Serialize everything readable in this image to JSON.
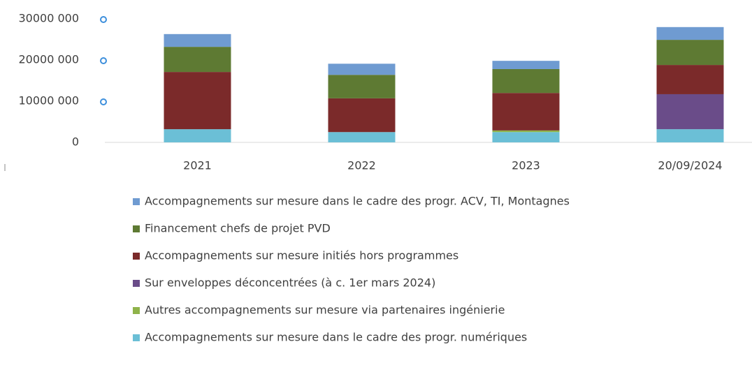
{
  "chart_data": {
    "type": "stacked_bar",
    "categories": [
      "2021",
      "2022",
      "2023",
      "20/09/2024"
    ],
    "series": [
      {
        "name": "Accompagnements sur mesure dans le cadre des progr. ACV, TI, Montagnes",
        "color": "#6f9bd1",
        "values": [
          3100000,
          2700000,
          2000000,
          3100000
        ]
      },
      {
        "name": "Financement chefs de projet PVD",
        "color": "#5e7a33",
        "values": [
          6100000,
          5700000,
          5800000,
          6100000
        ]
      },
      {
        "name": "Accompagnements  sur mesure initiés hors programmes",
        "color": "#7b2a2a",
        "values": [
          13900000,
          8200000,
          9100000,
          7100000
        ]
      },
      {
        "name": "Sur enveloppes déconcentrées (à c. 1er mars 2024)",
        "color": "#6a4c89",
        "values": [
          0,
          0,
          0,
          8500000
        ]
      },
      {
        "name": "Autres accompagnements sur mesure via partenaires ingénierie",
        "color": "#8fb34a",
        "values": [
          0,
          0,
          400000,
          0
        ]
      },
      {
        "name": "Accompagnements sur mesure dans le cadre des progr. numériques",
        "color": "#6bbfd6",
        "values": [
          3200000,
          2500000,
          2500000,
          3200000
        ]
      }
    ],
    "ylim": [
      0,
      30000000
    ],
    "yticks": [
      0,
      {
        "value": 10000000,
        "label": "10000 000"
      },
      {
        "value": 20000000,
        "label": "20000 000"
      },
      {
        "value": 30000000,
        "label": "30000 000"
      }
    ]
  }
}
